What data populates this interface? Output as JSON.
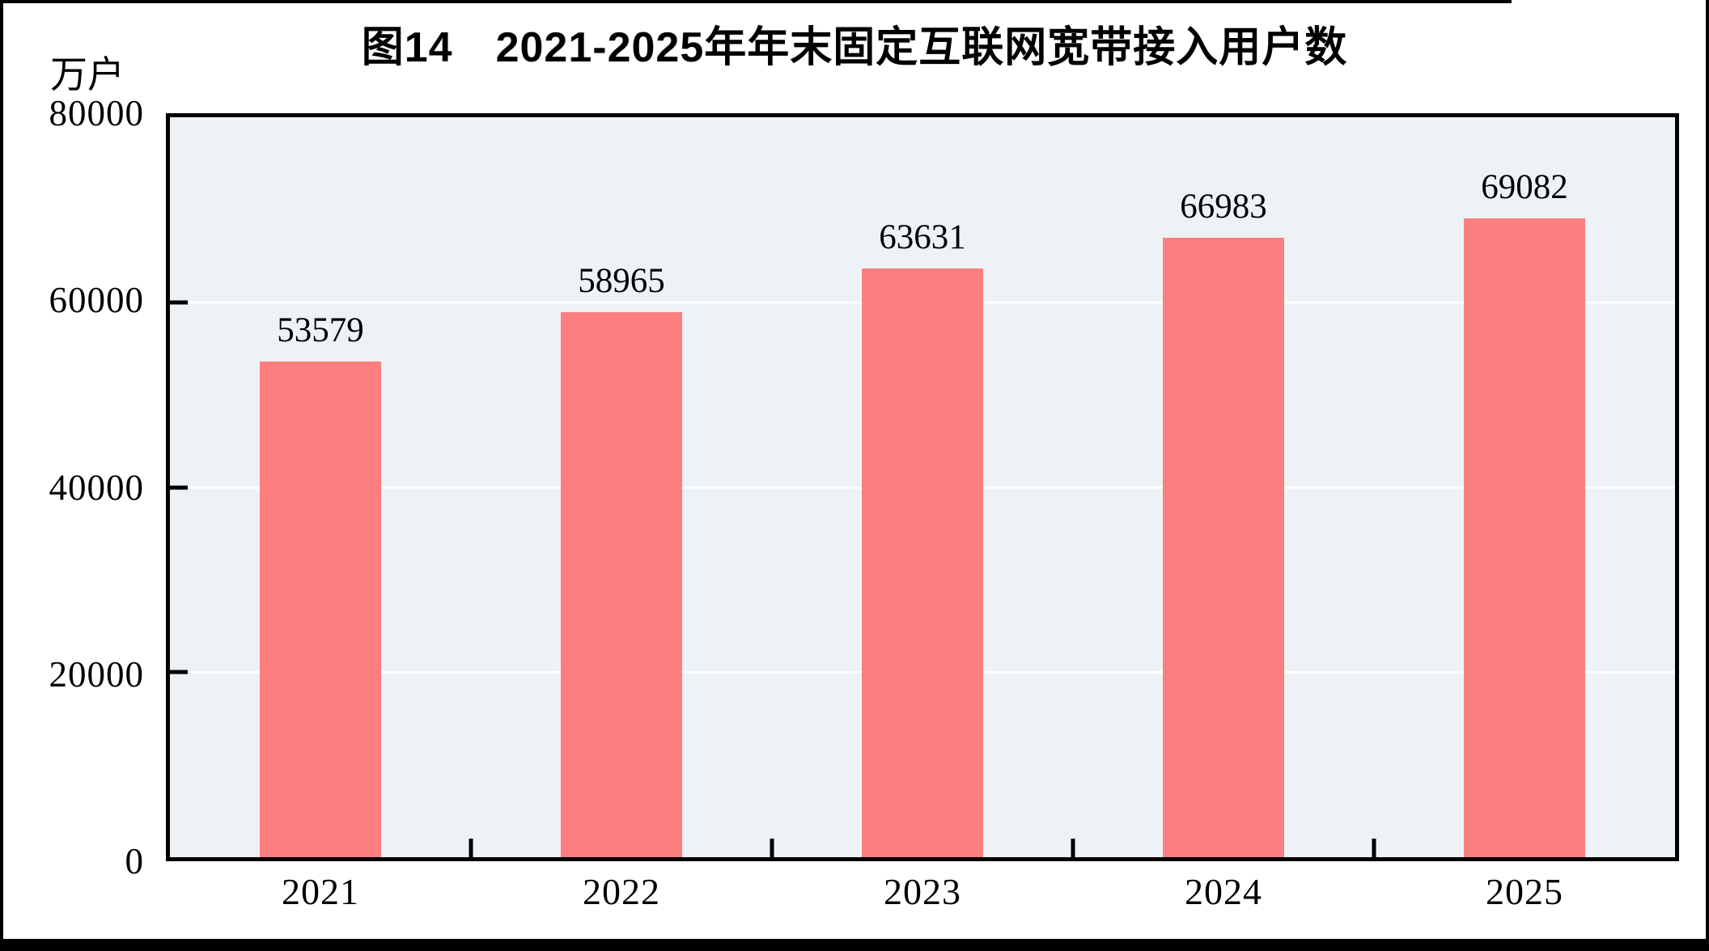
{
  "page": {
    "title": "图14　2021-2025年年末固定互联网宽带接入用户数",
    "unit_label": "万户"
  },
  "chart_data": {
    "type": "bar",
    "title": "图14　2021-2025年年末固定互联网宽带接入用户数",
    "ylabel": "万户",
    "xlabel": "",
    "categories": [
      "2021",
      "2022",
      "2023",
      "2024",
      "2025"
    ],
    "values": [
      53579,
      58965,
      63631,
      66983,
      69082
    ],
    "data_labels": [
      "53579",
      "58965",
      "63631",
      "66983",
      "69082"
    ],
    "ylim": [
      0,
      80000
    ],
    "yticks": [
      0,
      20000,
      40000,
      60000,
      80000
    ],
    "ytick_labels": [
      "0",
      "20000",
      "40000",
      "60000",
      "80000"
    ],
    "grid": "horizontal-gridlines-on",
    "legend": "none",
    "colors": {
      "bar": "#FC7E7E",
      "plot_bg": "#ECF2F6",
      "gridline": "#FFFFFF",
      "frame": "#000000",
      "text": "#000000"
    }
  }
}
